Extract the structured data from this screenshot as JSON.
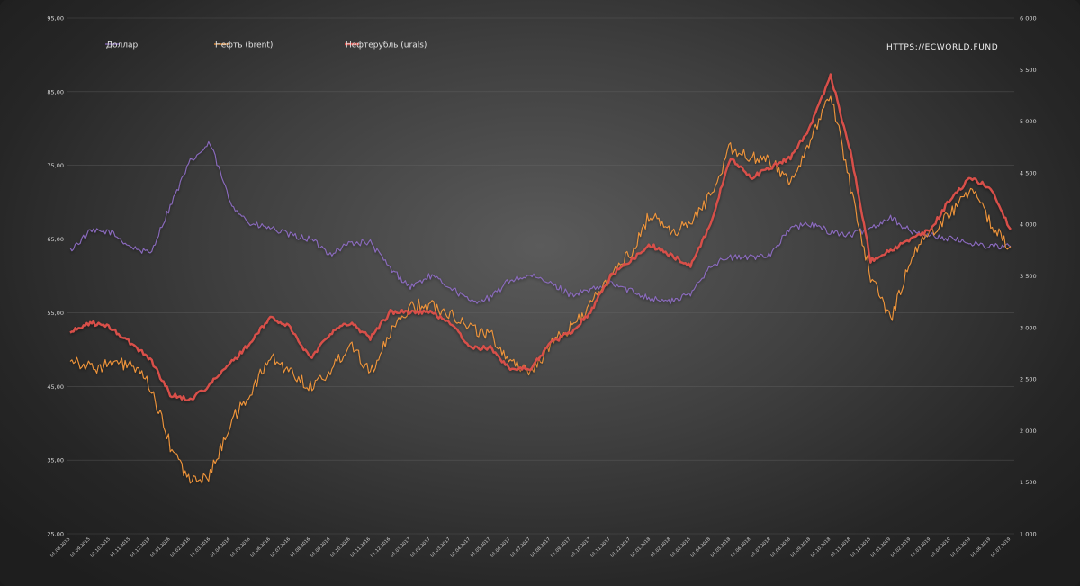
{
  "chart_data": {
    "type": "line",
    "watermark": "HTTPS://ECWORLD.FUND",
    "legend": [
      {
        "name": "Доллар",
        "color": "#8b6bbf"
      },
      {
        "name": "Нефть (brent)",
        "color": "#f0953a"
      },
      {
        "name": "Нефтерубль (urals)",
        "color": "#d9504a"
      }
    ],
    "y_left": {
      "min": 25,
      "max": 95,
      "ticks": [
        "25,00",
        "35,00",
        "45,00",
        "55,00",
        "65,00",
        "75,00",
        "85,00",
        "95,00"
      ]
    },
    "y_right": {
      "min": 1000,
      "max": 6000,
      "ticks": [
        "1 000",
        "1 500",
        "2 000",
        "2 500",
        "3 000",
        "3 500",
        "4 000",
        "4 500",
        "5 000",
        "5 500",
        "6 000"
      ]
    },
    "x_ticks": [
      "01.08.2015",
      "01.09.2015",
      "01.10.2015",
      "01.11.2015",
      "01.12.2015",
      "01.01.2016",
      "01.02.2016",
      "01.03.2016",
      "01.04.2016",
      "01.05.2016",
      "01.06.2016",
      "01.07.2016",
      "01.08.2016",
      "01.09.2016",
      "01.10.2016",
      "01.11.2016",
      "01.12.2016",
      "01.01.2017",
      "01.02.2017",
      "01.03.2017",
      "01.04.2017",
      "01.05.2017",
      "01.06.2017",
      "01.07.2017",
      "01.08.2017",
      "01.09.2017",
      "01.10.2017",
      "01.11.2017",
      "01.12.2017",
      "01.01.2018",
      "01.02.2018",
      "01.03.2018",
      "01.04.2018",
      "01.05.2018",
      "01.06.2018",
      "01.07.2018",
      "01.08.2018",
      "01.09.2018",
      "01.10.2018",
      "01.11.2018",
      "01.12.2018",
      "01.01.2019",
      "01.02.2019",
      "01.03.2019",
      "01.04.2019",
      "01.05.2019",
      "01.06.2019",
      "01.07.2019"
    ],
    "series": [
      {
        "name": "Доллар",
        "axis": "left",
        "color": "#8b6bbf",
        "width": 1.1,
        "values": [
          63.5,
          66.0,
          66.0,
          64.0,
          63.0,
          69.5,
          75.5,
          78.0,
          70.0,
          67.0,
          66.5,
          65.5,
          65.0,
          63.0,
          64.5,
          64.5,
          61.0,
          58.5,
          60.0,
          58.5,
          56.5,
          57.0,
          59.5,
          60.0,
          59.0,
          57.5,
          58.0,
          59.0,
          58.0,
          57.0,
          56.5,
          57.5,
          61.5,
          62.5,
          62.5,
          63.0,
          66.5,
          67.0,
          66.0,
          65.5,
          66.5,
          68.0,
          66.0,
          65.5,
          65.0,
          64.5,
          64.0,
          64.0
        ]
      },
      {
        "name": "Нефть (brent)",
        "axis": "left",
        "color": "#f0953a",
        "width": 1.1,
        "values": [
          49.0,
          47.5,
          48.0,
          48.0,
          45.0,
          37.0,
          32.0,
          33.0,
          40.0,
          44.0,
          49.0,
          47.0,
          45.0,
          47.0,
          51.0,
          47.0,
          52.0,
          56.0,
          56.0,
          55.0,
          53.0,
          52.0,
          48.5,
          47.0,
          50.5,
          53.0,
          56.0,
          60.0,
          63.0,
          68.5,
          66.0,
          67.0,
          71.0,
          77.5,
          76.0,
          75.5,
          73.0,
          78.0,
          85.0,
          72.0,
          60.0,
          54.0,
          62.5,
          66.0,
          68.5,
          72.0,
          67.0,
          64.0
        ]
      },
      {
        "name": "Нефтерубль (urals)",
        "axis": "right",
        "color": "#d9504a",
        "width": 2.4,
        "values": [
          2950,
          3050,
          3000,
          2850,
          2700,
          2350,
          2300,
          2450,
          2650,
          2850,
          3100,
          3000,
          2700,
          2950,
          3050,
          2900,
          3150,
          3150,
          3150,
          3050,
          2800,
          2800,
          2600,
          2600,
          2850,
          2950,
          3150,
          3500,
          3650,
          3800,
          3700,
          3600,
          4000,
          4650,
          4450,
          4550,
          4650,
          4950,
          5450,
          4700,
          3650,
          3750,
          3850,
          3950,
          4250,
          4450,
          4350,
          3950
        ]
      }
    ]
  }
}
